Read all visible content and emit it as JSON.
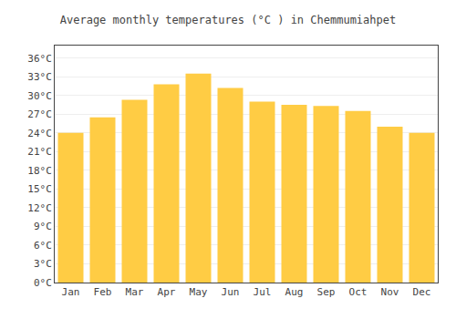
{
  "chart_data": {
    "type": "bar",
    "title": "Average monthly temperatures (°C ) in Chemmumiahpet",
    "categories": [
      "Jan",
      "Feb",
      "Mar",
      "Apr",
      "May",
      "Jun",
      "Jul",
      "Aug",
      "Sep",
      "Oct",
      "Nov",
      "Dec"
    ],
    "values": [
      24.0,
      26.5,
      29.3,
      31.8,
      33.5,
      31.2,
      29.0,
      28.5,
      28.3,
      27.5,
      25.0,
      24.0
    ],
    "color": "#FFCC44",
    "ylim": [
      0,
      38
    ],
    "yticks": [
      {
        "value": 0,
        "label": "0°C"
      },
      {
        "value": 3,
        "label": "3°C"
      },
      {
        "value": 6,
        "label": "6°C"
      },
      {
        "value": 9,
        "label": "9°C"
      },
      {
        "value": 12,
        "label": "12°C"
      },
      {
        "value": 15,
        "label": "15°C"
      },
      {
        "value": 18,
        "label": "18°C"
      },
      {
        "value": 21,
        "label": "21°C"
      },
      {
        "value": 24,
        "label": "24°C"
      },
      {
        "value": 27,
        "label": "27°C"
      },
      {
        "value": 30,
        "label": "30°C"
      },
      {
        "value": 33,
        "label": "33°C"
      },
      {
        "value": 36,
        "label": "36°C"
      }
    ],
    "grid": true
  }
}
